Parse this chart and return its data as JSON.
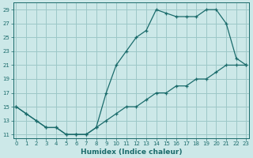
{
  "xlabel": "Humidex (Indice chaleur)",
  "bg_color": "#cce8e8",
  "grid_color": "#9dc8c8",
  "line_color": "#1a6b6b",
  "line1_x": [
    0,
    1,
    2,
    3,
    4,
    5,
    6,
    7,
    8,
    9,
    10,
    11,
    12,
    13,
    14,
    15,
    16,
    17,
    18,
    19,
    20,
    21,
    22,
    23
  ],
  "line1_y": [
    15,
    14,
    13,
    12,
    12,
    11,
    11,
    11,
    12,
    17,
    21,
    23,
    25,
    26,
    29,
    28.5,
    28,
    28,
    28,
    29,
    29,
    27,
    22,
    21
  ],
  "line2_x": [
    0,
    1,
    2,
    3,
    4,
    5,
    6,
    7,
    8,
    9,
    10,
    11,
    12,
    13,
    14,
    15,
    16,
    17,
    18,
    19,
    20,
    21,
    22,
    23
  ],
  "line2_y": [
    15,
    14,
    13,
    12,
    12,
    11,
    11,
    11,
    12,
    13,
    14,
    15,
    15,
    16,
    17,
    17,
    18,
    18,
    19,
    19,
    20,
    21,
    21,
    21
  ],
  "xlim": [
    -0.3,
    23.3
  ],
  "ylim": [
    10.5,
    30.0
  ],
  "yticks": [
    11,
    13,
    15,
    17,
    19,
    21,
    23,
    25,
    27,
    29
  ],
  "xticks": [
    0,
    1,
    2,
    3,
    4,
    5,
    6,
    7,
    8,
    9,
    10,
    11,
    12,
    13,
    14,
    15,
    16,
    17,
    18,
    19,
    20,
    21,
    22,
    23
  ],
  "xlabel_fontsize": 6.5,
  "tick_fontsize": 5.0
}
